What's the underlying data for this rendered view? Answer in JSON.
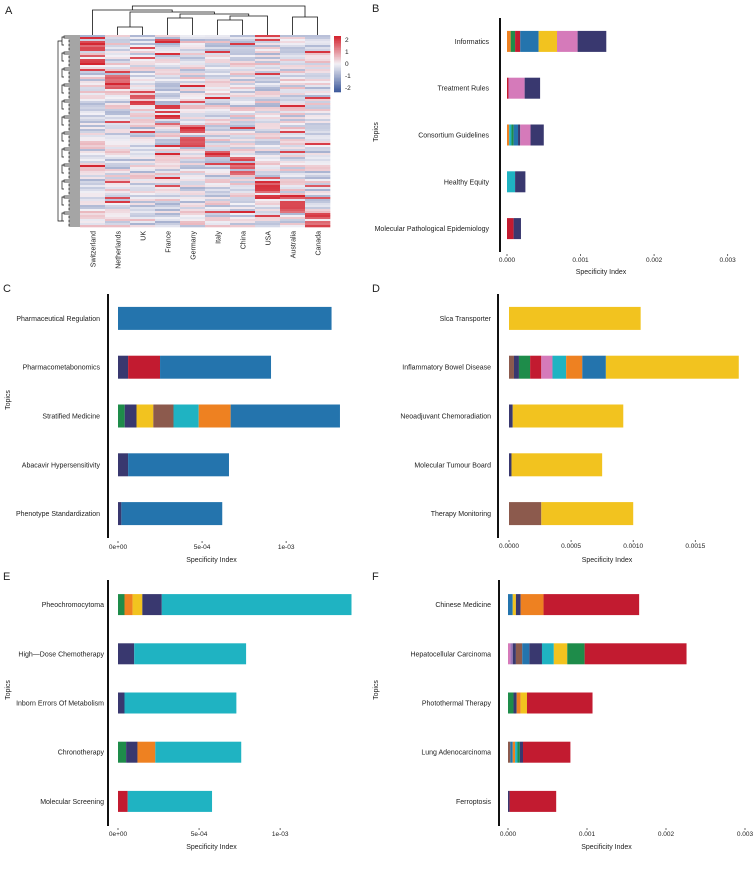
{
  "colors": {
    "navy": "#39386f",
    "crimson": "#c21b30",
    "blue": "#2474ad",
    "teal": "#1fb3c2",
    "yellow": "#f2c31f",
    "orange": "#ee8121",
    "pink": "#d57aba",
    "green": "#1e8c4a",
    "brown": "#8c5a4d",
    "purple": "#9a74b8",
    "heat_low": "#3f5b9c",
    "heat_mid": "#f3f1f6",
    "heat_high": "#d42530"
  },
  "chart_data": [
    {
      "panel": "A",
      "type": "heatmap",
      "columns": [
        "Switzerland",
        "Netherlands",
        "UK",
        "France",
        "Germany",
        "Italy",
        "China",
        "USA",
        "Australia",
        "Canada"
      ],
      "colorbar_ticks": [
        "2",
        "1",
        "0",
        "-1",
        "-2"
      ],
      "colorbar_range": [
        -2,
        2
      ],
      "dendrogram": true
    },
    {
      "panel": "B",
      "type": "bar",
      "stacked": true,
      "orientation": "horizontal",
      "ylabel": "Topics",
      "xlabel": "Specificity Index",
      "xlim": [
        -5e-05,
        0.0031
      ],
      "xticks": [
        0.0,
        0.001,
        0.002,
        0.003
      ],
      "xtick_labels": [
        "0.000",
        "0.001",
        "0.002",
        "0.003"
      ],
      "categories": [
        "Informatics",
        "Treatment Rules",
        "Consortium Guidelines",
        "Healthy Equity",
        "Molecular Pathological Epidemiology"
      ],
      "bars": [
        [
          {
            "c": "orange",
            "v": 5e-05
          },
          {
            "c": "green",
            "v": 6e-05
          },
          {
            "c": "crimson",
            "v": 7e-05
          },
          {
            "c": "blue",
            "v": 0.00025
          },
          {
            "c": "yellow",
            "v": 0.00025
          },
          {
            "c": "pink",
            "v": 0.00028
          },
          {
            "c": "navy",
            "v": 0.00039
          }
        ],
        [
          {
            "c": "crimson",
            "v": 2e-05
          },
          {
            "c": "pink",
            "v": 0.00022
          },
          {
            "c": "navy",
            "v": 0.00021
          }
        ],
        [
          {
            "c": "orange",
            "v": 3e-05
          },
          {
            "c": "teal",
            "v": 3e-05
          },
          {
            "c": "green",
            "v": 3e-05
          },
          {
            "c": "blue",
            "v": 6e-05
          },
          {
            "c": "navy",
            "v": 3e-05
          },
          {
            "c": "pink",
            "v": 0.00014
          },
          {
            "c": "navy",
            "v": 0.00018
          }
        ],
        [
          {
            "c": "teal",
            "v": 0.00011
          },
          {
            "c": "navy",
            "v": 0.00014
          }
        ],
        [
          {
            "c": "crimson",
            "v": 9e-05
          },
          {
            "c": "navy",
            "v": 0.0001
          }
        ]
      ]
    },
    {
      "panel": "C",
      "type": "bar",
      "stacked": true,
      "orientation": "horizontal",
      "ylabel": "Topics",
      "xlabel": "Specificity Index",
      "xlim": [
        -2e-05,
        0.00135
      ],
      "xticks": [
        0.0,
        0.0005,
        0.001
      ],
      "xtick_labels": [
        "0e+00",
        "5e-04",
        "1e-03"
      ],
      "categories": [
        "Pharmaceutical Regulation",
        "Pharmacometabonomics",
        "Stratified Medicine",
        "Abacavir Hypersensitivity",
        "Phenotype Standardization"
      ],
      "bars": [
        [
          {
            "c": "blue",
            "v": 0.00127
          }
        ],
        [
          {
            "c": "navy",
            "v": 6e-05
          },
          {
            "c": "crimson",
            "v": 0.00019
          },
          {
            "c": "blue",
            "v": 0.00066
          }
        ],
        [
          {
            "c": "green",
            "v": 4e-05
          },
          {
            "c": "navy",
            "v": 7e-05
          },
          {
            "c": "yellow",
            "v": 0.0001
          },
          {
            "c": "brown",
            "v": 0.00012
          },
          {
            "c": "teal",
            "v": 0.00015
          },
          {
            "c": "orange",
            "v": 0.00019
          },
          {
            "c": "blue",
            "v": 0.00065
          }
        ],
        [
          {
            "c": "navy",
            "v": 6e-05
          },
          {
            "c": "blue",
            "v": 0.0006
          }
        ],
        [
          {
            "c": "navy",
            "v": 2e-05
          },
          {
            "c": "blue",
            "v": 0.0006
          }
        ]
      ]
    },
    {
      "panel": "D",
      "type": "bar",
      "stacked": true,
      "orientation": "horizontal",
      "ylabel": "",
      "xlabel": "Specificity Index",
      "xlim": [
        -3e-05,
        0.0019
      ],
      "xticks": [
        0.0,
        0.0005,
        0.001,
        0.0015
      ],
      "xtick_labels": [
        "0.0000",
        "0.0005",
        "0.0010",
        "0.0015"
      ],
      "categories": [
        "Slca Transporter",
        "Inflammatory Bowel Disease",
        "Neoadjuvant Chemoradiation",
        "Molecular Tumour Board",
        "Therapy Monitoring"
      ],
      "bars": [
        [
          {
            "c": "yellow",
            "v": 0.00106
          }
        ],
        [
          {
            "c": "brown",
            "v": 4e-05
          },
          {
            "c": "navy",
            "v": 4e-05
          },
          {
            "c": "green",
            "v": 9e-05
          },
          {
            "c": "crimson",
            "v": 9e-05
          },
          {
            "c": "pink",
            "v": 9e-05
          },
          {
            "c": "teal",
            "v": 0.00011
          },
          {
            "c": "orange",
            "v": 0.00013
          },
          {
            "c": "blue",
            "v": 0.00019
          },
          {
            "c": "yellow",
            "v": 0.00107
          }
        ],
        [
          {
            "c": "navy",
            "v": 3e-05
          },
          {
            "c": "yellow",
            "v": 0.00089
          }
        ],
        [
          {
            "c": "navy",
            "v": 2e-05
          },
          {
            "c": "yellow",
            "v": 0.00073
          }
        ],
        [
          {
            "c": "brown",
            "v": 0.00026
          },
          {
            "c": "yellow",
            "v": 0.00074
          }
        ]
      ]
    },
    {
      "panel": "E",
      "type": "bar",
      "stacked": true,
      "orientation": "horizontal",
      "ylabel": "Topics",
      "xlabel": "Specificity Index",
      "xlim": [
        -3e-05,
        0.0014
      ],
      "xticks": [
        0.0,
        0.0005,
        0.001
      ],
      "xtick_labels": [
        "0e+00",
        "5e-04",
        "1e-03"
      ],
      "categories": [
        "Pheochromocytoma",
        "High—Dose Chemotherapy",
        "Inborn Errors Of Metabolism",
        "Chronotherapy",
        "Molecular Screening"
      ],
      "bars": [
        [
          {
            "c": "green",
            "v": 4e-05
          },
          {
            "c": "orange",
            "v": 5e-05
          },
          {
            "c": "yellow",
            "v": 6e-05
          },
          {
            "c": "navy",
            "v": 0.00012
          },
          {
            "c": "teal",
            "v": 0.00117
          }
        ],
        [
          {
            "c": "navy",
            "v": 0.0001
          },
          {
            "c": "teal",
            "v": 0.00069
          }
        ],
        [
          {
            "c": "navy",
            "v": 4e-05
          },
          {
            "c": "teal",
            "v": 0.00069
          }
        ],
        [
          {
            "c": "green",
            "v": 5e-05
          },
          {
            "c": "navy",
            "v": 7e-05
          },
          {
            "c": "orange",
            "v": 0.00011
          },
          {
            "c": "teal",
            "v": 0.00053
          }
        ],
        [
          {
            "c": "crimson",
            "v": 6e-05
          },
          {
            "c": "teal",
            "v": 0.00052
          }
        ]
      ]
    },
    {
      "panel": "F",
      "type": "bar",
      "stacked": true,
      "orientation": "horizontal",
      "ylabel": "Topics",
      "xlabel": "Specificity Index",
      "xlim": [
        -5e-05,
        0.003
      ],
      "xticks": [
        0.0,
        0.001,
        0.002,
        0.003
      ],
      "xtick_labels": [
        "0.000",
        "0.001",
        "0.002",
        "0.003"
      ],
      "categories": [
        "Chinese Medicine",
        "Hepatocellular Carcinoma",
        "Photothermal Therapy",
        "Lung Adenocarcinoma",
        "Ferroptosis"
      ],
      "bars": [
        [
          {
            "c": "blue",
            "v": 6e-05
          },
          {
            "c": "yellow",
            "v": 4e-05
          },
          {
            "c": "navy",
            "v": 6e-05
          },
          {
            "c": "orange",
            "v": 0.00029
          },
          {
            "c": "crimson",
            "v": 0.00121
          }
        ],
        [
          {
            "c": "pink",
            "v": 3e-05
          },
          {
            "c": "purple",
            "v": 3e-05
          },
          {
            "c": "navy",
            "v": 4e-05
          },
          {
            "c": "brown",
            "v": 8e-05
          },
          {
            "c": "blue",
            "v": 9e-05
          },
          {
            "c": "navy",
            "v": 0.00016
          },
          {
            "c": "teal",
            "v": 0.00015
          },
          {
            "c": "yellow",
            "v": 0.00017
          },
          {
            "c": "green",
            "v": 0.00022
          },
          {
            "c": "crimson",
            "v": 0.00129
          }
        ],
        [
          {
            "c": "green",
            "v": 7e-05
          },
          {
            "c": "navy",
            "v": 4e-05
          },
          {
            "c": "orange",
            "v": 5e-05
          },
          {
            "c": "yellow",
            "v": 8e-05
          },
          {
            "c": "crimson",
            "v": 0.00083
          }
        ],
        [
          {
            "c": "brown",
            "v": 3e-05
          },
          {
            "c": "blue",
            "v": 3e-05
          },
          {
            "c": "orange",
            "v": 3e-05
          },
          {
            "c": "teal",
            "v": 3e-05
          },
          {
            "c": "green",
            "v": 3e-05
          },
          {
            "c": "navy",
            "v": 4e-05
          },
          {
            "c": "crimson",
            "v": 0.0006
          }
        ],
        [
          {
            "c": "navy",
            "v": 2e-05
          },
          {
            "c": "crimson",
            "v": 0.00059
          }
        ]
      ]
    }
  ]
}
